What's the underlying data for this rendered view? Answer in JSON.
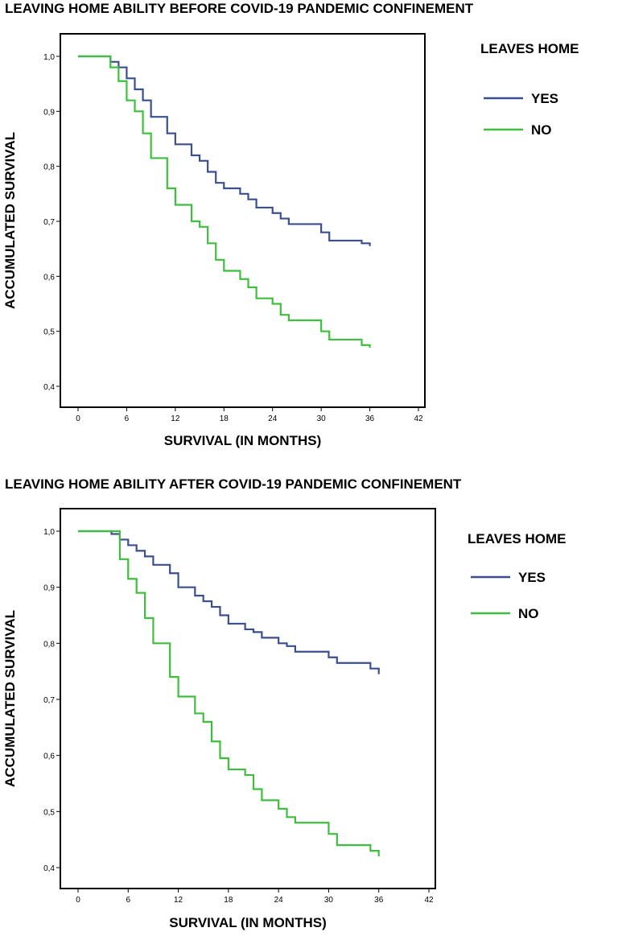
{
  "chart_data": [
    {
      "type": "line",
      "title": "LEAVING HOME ABILITY BEFORE COVID-19 PANDEMIC CONFINEMENT",
      "xlabel": "SURVIVAL (IN MONTHS)",
      "ylabel": "ACCUMULATED SURVIVAL",
      "xlim": [
        0,
        42
      ],
      "ylim": [
        0.4,
        1.0
      ],
      "xticks": [
        "0",
        "6",
        "12",
        "18",
        "24",
        "30",
        "36",
        "42"
      ],
      "yticks": [
        "0,4",
        "0,5",
        "0,6",
        "0,7",
        "0,8",
        "0,9",
        "1,0"
      ],
      "legend": {
        "title": "LEAVES HOME",
        "position": "right"
      },
      "step": true,
      "series": [
        {
          "name": "YES",
          "color": "#3a4f8f",
          "x": [
            0,
            4,
            5,
            6,
            7,
            8,
            9,
            11,
            12,
            14,
            15,
            16,
            17,
            18,
            20,
            21,
            22,
            24,
            25,
            26,
            30,
            31,
            35,
            36
          ],
          "y": [
            1.0,
            0.99,
            0.98,
            0.96,
            0.94,
            0.92,
            0.89,
            0.86,
            0.84,
            0.82,
            0.81,
            0.79,
            0.77,
            0.76,
            0.75,
            0.74,
            0.725,
            0.715,
            0.705,
            0.695,
            0.68,
            0.665,
            0.66,
            0.655
          ]
        },
        {
          "name": "NO",
          "color": "#3dbf3d",
          "x": [
            0,
            4,
            5,
            6,
            7,
            8,
            9,
            11,
            12,
            14,
            15,
            16,
            17,
            18,
            20,
            21,
            22,
            24,
            25,
            26,
            30,
            31,
            35,
            36
          ],
          "y": [
            1.0,
            0.98,
            0.955,
            0.92,
            0.9,
            0.86,
            0.815,
            0.76,
            0.73,
            0.7,
            0.69,
            0.66,
            0.63,
            0.61,
            0.595,
            0.58,
            0.56,
            0.55,
            0.53,
            0.52,
            0.5,
            0.485,
            0.475,
            0.47
          ]
        }
      ]
    },
    {
      "type": "line",
      "title": "LEAVING HOME ABILITY AFTER COVID-19 PANDEMIC CONFINEMENT",
      "xlabel": "SURVIVAL (IN MONTHS)",
      "ylabel": "ACCUMULATED SURVIVAL",
      "xlim": [
        0,
        42
      ],
      "ylim": [
        0.4,
        1.0
      ],
      "xticks": [
        "0",
        "6",
        "12",
        "18",
        "24",
        "30",
        "36",
        "42"
      ],
      "yticks": [
        "0,4",
        "0,5",
        "0,6",
        "0,7",
        "0,8",
        "0,9",
        "1,0"
      ],
      "legend": {
        "title": "LEAVES HOME",
        "position": "right"
      },
      "step": true,
      "series": [
        {
          "name": "YES",
          "color": "#3a4f8f",
          "x": [
            0,
            4,
            5,
            6,
            7,
            8,
            9,
            11,
            12,
            14,
            15,
            16,
            17,
            18,
            20,
            21,
            22,
            24,
            25,
            26,
            30,
            31,
            35,
            36
          ],
          "y": [
            1.0,
            0.995,
            0.985,
            0.975,
            0.965,
            0.955,
            0.94,
            0.925,
            0.9,
            0.885,
            0.875,
            0.865,
            0.85,
            0.835,
            0.825,
            0.82,
            0.81,
            0.8,
            0.795,
            0.785,
            0.775,
            0.765,
            0.755,
            0.745
          ]
        },
        {
          "name": "NO",
          "color": "#3dbf3d",
          "x": [
            0,
            5,
            6,
            7,
            8,
            9,
            11,
            12,
            14,
            15,
            16,
            17,
            18,
            20,
            21,
            22,
            24,
            25,
            26,
            30,
            31,
            35,
            36
          ],
          "y": [
            1.0,
            0.95,
            0.915,
            0.89,
            0.845,
            0.8,
            0.74,
            0.705,
            0.675,
            0.66,
            0.625,
            0.595,
            0.575,
            0.565,
            0.54,
            0.52,
            0.505,
            0.49,
            0.48,
            0.46,
            0.44,
            0.43,
            0.42
          ]
        }
      ]
    }
  ]
}
